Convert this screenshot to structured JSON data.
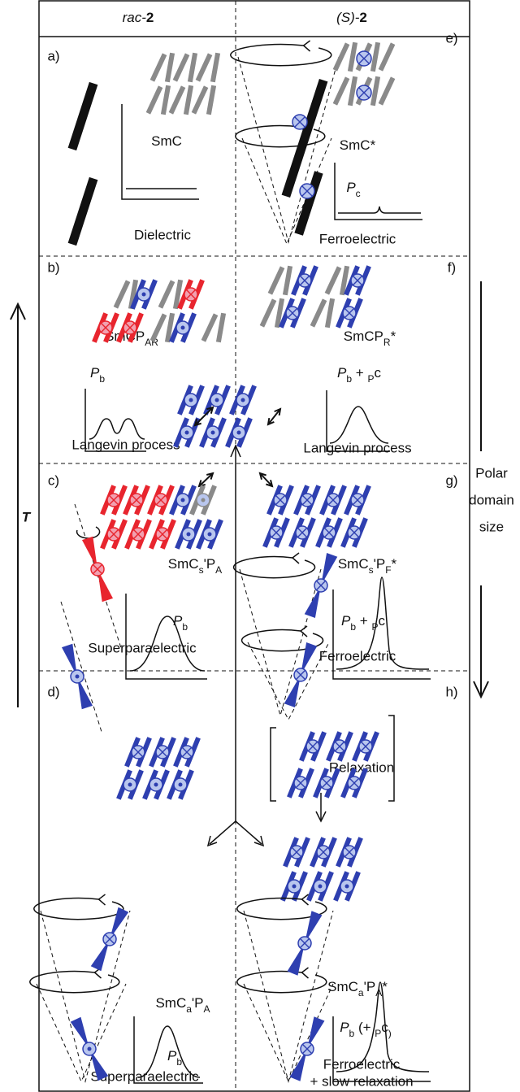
{
  "header": {
    "left": [
      "rac-",
      "2"
    ],
    "right": [
      "(S)-",
      "2"
    ]
  },
  "panels": [
    {
      "label": "a)",
      "phase": [
        "SmC"
      ],
      "process": [
        "Dielectric"
      ]
    },
    {
      "label": "b)",
      "phase": [
        "SmCP",
        "AR"
      ],
      "polarization": [
        "P",
        "b"
      ],
      "process": [
        "Langevin process"
      ]
    },
    {
      "label": "c)",
      "phase": [
        "SmC",
        "s",
        "'P",
        "A"
      ],
      "polarization": [
        "P",
        "b"
      ],
      "process": [
        "Superparaelectric"
      ]
    },
    {
      "label": "d)",
      "phase": [
        "SmC",
        "a",
        "'P",
        "A"
      ],
      "polarization": [
        "P",
        "b"
      ],
      "process": [
        "Superparaelectric"
      ]
    },
    {
      "label": "e)",
      "phase": [
        "SmC*"
      ],
      "polarization": [
        "P",
        "c"
      ],
      "process": [
        "Ferroelectric"
      ]
    },
    {
      "label": "f)",
      "phase": [
        "SmCP",
        "R",
        "*"
      ],
      "polarization": [
        "P",
        "b",
        " + ",
        "P",
        "c"
      ],
      "process": [
        "Langevin process"
      ]
    },
    {
      "label": "g)",
      "phase": [
        "SmC",
        "s",
        "'P",
        "F",
        "*"
      ],
      "polarization": [
        "P",
        "b",
        " + ",
        "P",
        "c"
      ],
      "process": [
        "Ferroelectric"
      ]
    },
    {
      "label": "h)",
      "phase": [
        "SmC",
        "a",
        "'P",
        "A",
        "*"
      ],
      "polarization": [
        "P",
        "b",
        " (+ ",
        "P",
        "c",
        ")"
      ],
      "process": [
        "Ferroelectric",
        "+ slow relaxation"
      ],
      "note": "Relaxation"
    }
  ],
  "axis_left": "T",
  "axis_right": [
    "Polar",
    "domain",
    "size"
  ]
}
